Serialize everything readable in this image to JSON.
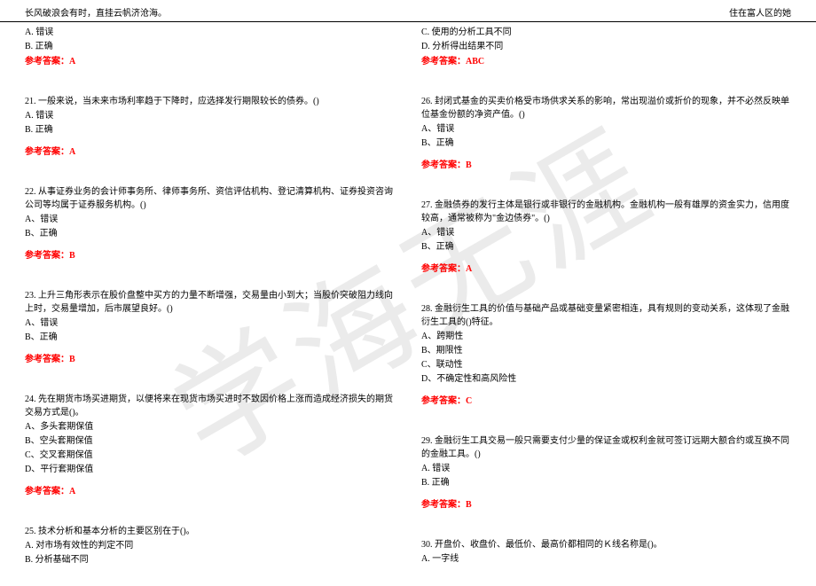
{
  "header": {
    "left": "长风破浪会有时，直挂云帆济沧海。",
    "right": "住在富人区的她"
  },
  "watermark": "学海无涯",
  "answer_label": "参考答案：",
  "left_column": {
    "top_options": {
      "a": "A. 错误",
      "b": "B. 正确"
    },
    "top_answer": "A",
    "q21": {
      "text": "21. 一般来说，当未来市场利率趋于下降时，应选择发行期限较长的债券。()",
      "a": "A. 错误",
      "b": "B. 正确",
      "answer": "A"
    },
    "q22": {
      "text": "22. 从事证券业务的会计师事务所、律师事务所、资信评估机构、登记清算机构、证券投资咨询公司等均属于证券服务机构。()",
      "a": "A、错误",
      "b": "B、正确",
      "answer": "B"
    },
    "q23": {
      "text": "23. 上升三角形表示在股价盘整中买方的力量不断增强，交易量由小到大；当股价突破阻力线向上时，交易量增加，后市展望良好。()",
      "a": "A、错误",
      "b": "B、正确",
      "answer": "B"
    },
    "q24": {
      "text": "24. 先在期货市场买进期货，以便将来在现货市场买进时不致因价格上涨而造成经济损失的期货交易方式是()。",
      "a": "A、多头套期保值",
      "b": "B、空头套期保值",
      "c": "C、交叉套期保值",
      "d": "D、平行套期保值",
      "answer": "A"
    },
    "q25": {
      "text": "25. 技术分析和基本分析的主要区别在于()。",
      "a": "A. 对市场有效性的判定不同",
      "b": "B. 分析基础不同"
    }
  },
  "right_column": {
    "top_options": {
      "c": "C. 使用的分析工具不同",
      "d": "D. 分析得出结果不同"
    },
    "top_answer": "ABC",
    "q26": {
      "text": "26. 封闭式基金的买卖价格受市场供求关系的影响，常出现溢价或折价的现象，并不必然反映单位基金份额的净资产值。()",
      "a": "A、错误",
      "b": "B、正确",
      "answer": "B"
    },
    "q27": {
      "text": "27. 金融债券的发行主体是银行或非银行的金融机构。金融机构一般有雄厚的资金实力，信用度较高，通常被称为\"金边债券\"。()",
      "a": "A、错误",
      "b": "B、正确",
      "answer": "A"
    },
    "q28": {
      "text": "28. 金融衍生工具的价值与基础产品或基础变量紧密相连，具有规则的变动关系，这体现了金融衍生工具的()特征。",
      "a": "A、跨期性",
      "b": "B、期限性",
      "c": "C、联动性",
      "d": "D、不确定性和高风险性",
      "answer": "C"
    },
    "q29": {
      "text": "29. 金融衍生工具交易一般只需要支付少量的保证金或权利金就可签订远期大额合约或互换不同的金融工具。()",
      "a": "A. 错误",
      "b": "B. 正确",
      "answer": "B"
    },
    "q30": {
      "text": "30. 开盘价、收盘价、最低价、最高价都相同的Ｋ线名称是()。",
      "a": "A. 一字线"
    }
  }
}
